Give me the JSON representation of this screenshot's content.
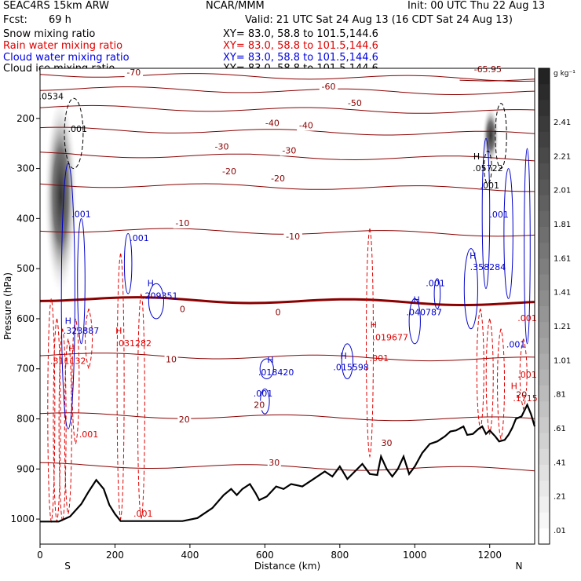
{
  "header": {
    "model": "SEAC4RS 15km ARW",
    "center": "NCAR/MMM",
    "init": "Init: 00 UTC Thu 22 Aug 13",
    "fcst_label": "Fcst:",
    "fcst_value": "69 h",
    "valid": "Valid: 21 UTC Sat 24 Aug 13 (16 CDT Sat 24 Aug 13)",
    "fields": [
      {
        "name": "Snow mixing ratio",
        "xy": "XY=  83.0, 58.8 to 101.5,144.6",
        "color": "#000000"
      },
      {
        "name": "Rain water mixing ratio",
        "xy": "XY=  83.0, 58.8 to 101.5,144.6",
        "color": "#e00000"
      },
      {
        "name": "Cloud water mixing ratio",
        "xy": "XY=  83.0, 58.8 to 101.5,144.6",
        "color": "#0000e0"
      },
      {
        "name": "Cloud ice mixing ratio",
        "xy": "XY=  83.0, 58.8 to 101.5,144.6",
        "color": "#000000"
      }
    ]
  },
  "chart_data": {
    "type": "contour",
    "xlabel": "Distance (km)",
    "ylabel": "Pressure (hPa)",
    "xlim": [
      0,
      1320
    ],
    "ylim": [
      1050,
      100
    ],
    "xticks": [
      0,
      200,
      400,
      600,
      800,
      1000,
      1200
    ],
    "yticks": [
      200,
      300,
      400,
      500,
      600,
      700,
      800,
      900,
      1000
    ],
    "x_end_labels": {
      "left": "S",
      "right": "N"
    },
    "colorbar": {
      "unit": "g kg⁻¹",
      "labels": [
        "2.41",
        "2.21",
        "2.01",
        "1.81",
        "1.61",
        "1.41",
        "1.21",
        "1.01",
        ".81",
        ".61",
        ".41",
        ".21",
        ".01"
      ]
    },
    "temperature_contours": [
      {
        "label": "-70",
        "p": 112,
        "x0": 0,
        "x1": 1320
      },
      {
        "label": "-65.95",
        "p": 112,
        "x0": 1120,
        "x1": 1320
      },
      {
        "label": "-60",
        "p": 140,
        "x0": 0,
        "x1": 1320
      },
      {
        "label": "-50",
        "p": 178,
        "x0": 0,
        "x1": 1320
      },
      {
        "label": "-40",
        "p": 222,
        "x0": 0,
        "x1": 1320
      },
      {
        "label": "-30",
        "p": 272,
        "x0": 0,
        "x1": 1320
      },
      {
        "label": "-20",
        "p": 332,
        "x0": 0,
        "x1": 1320
      },
      {
        "label": "-10",
        "p": 422,
        "x0": 0,
        "x1": 1320
      },
      {
        "label": "0",
        "p": 560,
        "x0": 0,
        "x1": 1320
      },
      {
        "label": "10",
        "p": 672,
        "x0": 0,
        "x1": 1320
      },
      {
        "label": "20",
        "p": 792,
        "x0": 0,
        "x1": 1320
      },
      {
        "label": "30",
        "p": 892,
        "x0": 0,
        "x1": 1320
      }
    ],
    "temperature_labels": [
      {
        "text": "-70",
        "x": 250,
        "p": 114
      },
      {
        "text": "-65.95",
        "x": 1195,
        "p": 108
      },
      {
        "text": "-60",
        "x": 770,
        "p": 142
      },
      {
        "text": "-50",
        "x": 840,
        "p": 175
      },
      {
        "text": "-40",
        "x": 620,
        "p": 215
      },
      {
        "text": "-40",
        "x": 710,
        "p": 220
      },
      {
        "text": "-30",
        "x": 485,
        "p": 262
      },
      {
        "text": "-30",
        "x": 665,
        "p": 270
      },
      {
        "text": "-20",
        "x": 505,
        "p": 312
      },
      {
        "text": "-20",
        "x": 635,
        "p": 326
      },
      {
        "text": "-10",
        "x": 380,
        "p": 415
      },
      {
        "text": "-10",
        "x": 675,
        "p": 442
      },
      {
        "text": "0",
        "x": 380,
        "p": 587
      },
      {
        "text": "0",
        "x": 635,
        "p": 593
      },
      {
        "text": "10",
        "x": 350,
        "p": 687
      },
      {
        "text": "20",
        "x": 385,
        "p": 807
      },
      {
        "text": "20",
        "x": 585,
        "p": 778
      },
      {
        "text": "20",
        "x": 1285,
        "p": 758
      },
      {
        "text": "30",
        "x": 625,
        "p": 893
      },
      {
        "text": "30",
        "x": 925,
        "p": 854
      }
    ],
    "terrain": [
      [
        0,
        1005
      ],
      [
        50,
        1005
      ],
      [
        80,
        995
      ],
      [
        110,
        970
      ],
      [
        130,
        945
      ],
      [
        150,
        922
      ],
      [
        170,
        940
      ],
      [
        185,
        972
      ],
      [
        200,
        990
      ],
      [
        215,
        1004
      ],
      [
        380,
        1004
      ],
      [
        420,
        998
      ],
      [
        460,
        978
      ],
      [
        490,
        952
      ],
      [
        510,
        940
      ],
      [
        525,
        952
      ],
      [
        540,
        940
      ],
      [
        560,
        930
      ],
      [
        575,
        948
      ],
      [
        585,
        962
      ],
      [
        605,
        955
      ],
      [
        630,
        935
      ],
      [
        650,
        940
      ],
      [
        670,
        930
      ],
      [
        700,
        935
      ],
      [
        730,
        920
      ],
      [
        760,
        905
      ],
      [
        780,
        915
      ],
      [
        800,
        895
      ],
      [
        820,
        920
      ],
      [
        840,
        905
      ],
      [
        860,
        890
      ],
      [
        880,
        910
      ],
      [
        900,
        912
      ],
      [
        910,
        875
      ],
      [
        925,
        900
      ],
      [
        940,
        915
      ],
      [
        955,
        900
      ],
      [
        970,
        875
      ],
      [
        985,
        910
      ],
      [
        1000,
        895
      ],
      [
        1020,
        868
      ],
      [
        1040,
        850
      ],
      [
        1060,
        845
      ],
      [
        1080,
        835
      ],
      [
        1095,
        825
      ],
      [
        1110,
        823
      ],
      [
        1130,
        815
      ],
      [
        1140,
        832
      ],
      [
        1155,
        830
      ],
      [
        1170,
        820
      ],
      [
        1180,
        815
      ],
      [
        1190,
        830
      ],
      [
        1200,
        823
      ],
      [
        1215,
        835
      ],
      [
        1225,
        845
      ],
      [
        1240,
        842
      ],
      [
        1250,
        832
      ],
      [
        1260,
        818
      ],
      [
        1270,
        800
      ],
      [
        1285,
        795
      ],
      [
        1300,
        772
      ],
      [
        1310,
        790
      ],
      [
        1320,
        815
      ]
    ],
    "rain_labels": [
      {
        "text": "H",
        "x": 85,
        "p": 665
      },
      {
        "text": ".311132",
        "x": 75,
        "p": 690
      },
      {
        "text": "H",
        "x": 210,
        "p": 630
      },
      {
        "text": ".031282",
        "x": 250,
        "p": 655
      },
      {
        "text": "H",
        "x": 890,
        "p": 618
      },
      {
        "text": ".019677",
        "x": 935,
        "p": 643
      },
      {
        "text": ".001",
        "x": 905,
        "p": 685
      },
      {
        "text": "H",
        "x": 1265,
        "p": 740
      },
      {
        "text": ".1715",
        "x": 1295,
        "p": 765
      },
      {
        "text": ".001",
        "x": 1300,
        "p": 718
      },
      {
        "text": ".001",
        "x": 130,
        "p": 837
      },
      {
        "text": ".001",
        "x": 275,
        "p": 995
      },
      {
        "text": ".001",
        "x": 1300,
        "p": 605
      }
    ],
    "cloud_water_labels": [
      {
        "text": ".001",
        "x": 110,
        "p": 397
      },
      {
        "text": ".001",
        "x": 265,
        "p": 445
      },
      {
        "text": "H",
        "x": 295,
        "p": 535
      },
      {
        "text": ".209351",
        "x": 320,
        "p": 560
      },
      {
        "text": "H",
        "x": 75,
        "p": 610
      },
      {
        "text": ".323887",
        "x": 110,
        "p": 630
      },
      {
        "text": "H",
        "x": 615,
        "p": 688
      },
      {
        "text": ".018420",
        "x": 630,
        "p": 713
      },
      {
        "text": "H",
        "x": 810,
        "p": 680
      },
      {
        "text": ".015598",
        "x": 830,
        "p": 703
      },
      {
        "text": "H",
        "x": 1005,
        "p": 568
      },
      {
        "text": ".040787",
        "x": 1025,
        "p": 593
      },
      {
        "text": ".001",
        "x": 1055,
        "p": 535
      },
      {
        "text": "H",
        "x": 1155,
        "p": 480
      },
      {
        "text": ".358284",
        "x": 1195,
        "p": 503
      },
      {
        "text": ".001",
        "x": 1225,
        "p": 398
      },
      {
        "text": ".001",
        "x": 1270,
        "p": 657
      },
      {
        "text": ".001",
        "x": 595,
        "p": 755
      }
    ],
    "ice_labels": [
      {
        "text": ".0534",
        "x": 30,
        "p": 162
      },
      {
        "text": ".001",
        "x": 100,
        "p": 227
      },
      {
        "text": "H",
        "x": 1165,
        "p": 282
      },
      {
        "text": ".05722",
        "x": 1195,
        "p": 305
      },
      {
        "text": ".001",
        "x": 1200,
        "p": 340
      }
    ],
    "snow_columns": [
      {
        "x0": 10,
        "x1": 100,
        "p_top": 170,
        "p_bot": 580
      },
      {
        "x0": 1180,
        "x1": 1225,
        "p_top": 180,
        "p_bot": 300
      }
    ]
  }
}
